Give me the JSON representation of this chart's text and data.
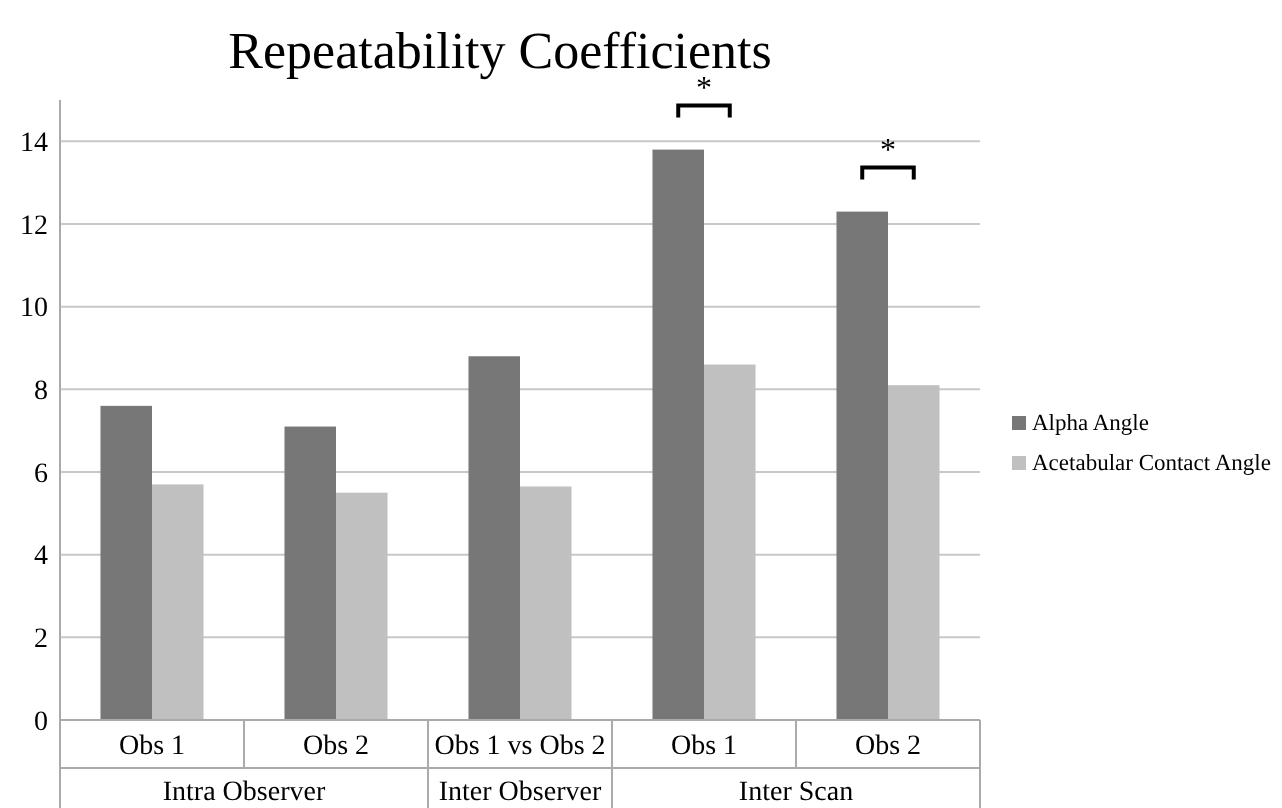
{
  "chart_data": {
    "type": "bar",
    "title": "Repeatability Coefficients",
    "categories": [
      "Obs 1",
      "Obs 2",
      "Obs 1 vs Obs 2",
      "Obs 1",
      "Obs 2"
    ],
    "series": [
      {
        "name": "Alpha Angle",
        "color": "#777777",
        "values": [
          7.6,
          7.1,
          8.8,
          13.8,
          12.3
        ]
      },
      {
        "name": "Acetabular Contact Angle",
        "color": "#c0c0c0",
        "values": [
          5.7,
          5.5,
          5.65,
          8.6,
          8.1
        ]
      }
    ],
    "ylim": [
      0,
      15
    ],
    "yticks": [
      0,
      2,
      4,
      6,
      8,
      10,
      12,
      14
    ],
    "grid": "y",
    "legend": "right",
    "annotations": [
      "Intra Observer",
      "Inter Observer",
      "Inter Scan",
      "*",
      "*"
    ]
  }
}
